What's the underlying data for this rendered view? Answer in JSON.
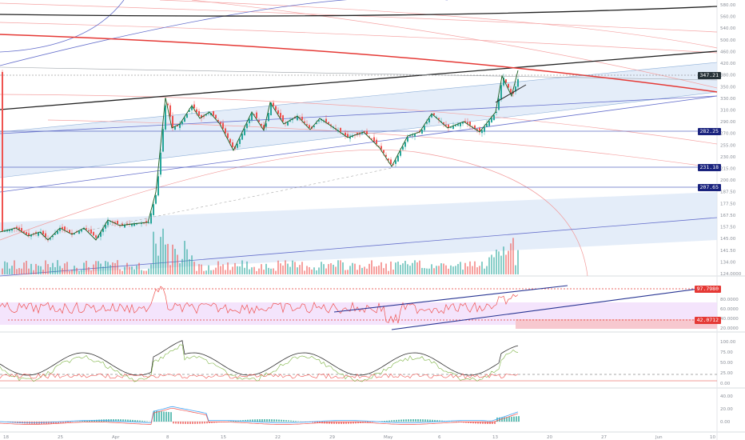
{
  "colors": {
    "background": "#ffffff",
    "candle_up": "#26a69a",
    "candle_down": "#ef5350",
    "black_line": "#222222",
    "red_line": "#e53935",
    "blue_line": "#5c6bc0",
    "fan_pink": "#f5a3a3",
    "channel_fill": "#dbe7f7",
    "rsi_band": "#f1ddfb",
    "rsi_line": "#ef5350",
    "level_tag_blue": "#1a237e",
    "rsi_tag_red": "#e53935"
  },
  "price_axis": {
    "labels": [
      "580.00",
      "560.00",
      "540.00",
      "500.00",
      "460.00",
      "420.00",
      "380.00",
      "350.00",
      "330.00",
      "310.00",
      "290.00",
      "270.00",
      "255.00",
      "230.00",
      "215.00",
      "200.00",
      "187.50",
      "177.50",
      "167.50",
      "157.50",
      "145.00",
      "141.50",
      "134.00",
      "124.0000"
    ],
    "current_price_tag": "347.21",
    "level_tags": [
      "282.25",
      "231.18",
      "207.65"
    ]
  },
  "rsi_axis": {
    "labels": [
      "80.0000",
      "60.0000",
      "40.0000",
      "20.0000"
    ],
    "tags": [
      "97.7980",
      "42.0712"
    ]
  },
  "stoch_axis": {
    "labels": [
      "100.00",
      "75.00",
      "50.00",
      "25.00",
      "0.00"
    ]
  },
  "macd_axis": {
    "labels": [
      "40.00",
      "20.00",
      "0.00"
    ]
  },
  "time_axis": {
    "labels": [
      "18",
      "25",
      "Apr",
      "8",
      "15",
      "22",
      "29",
      "May",
      "6",
      "13",
      "20",
      "27",
      "Jun",
      "10"
    ]
  }
}
